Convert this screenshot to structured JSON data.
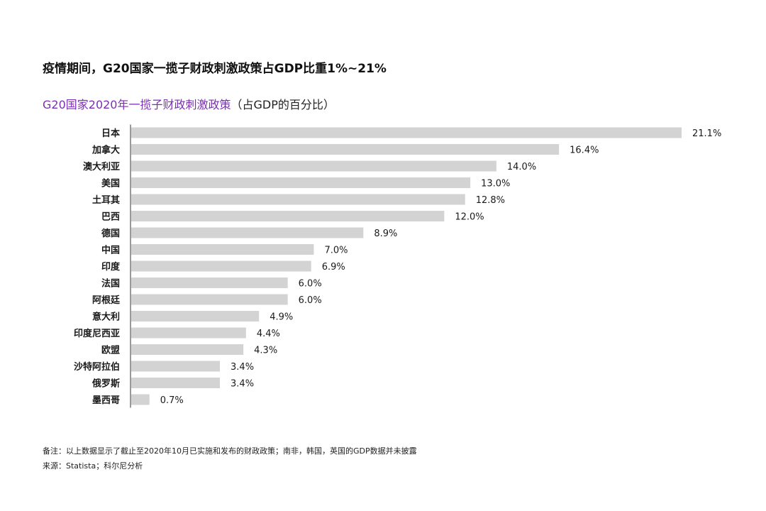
{
  "headline": "疫情期间，G20国家一揽子财政刺激政策占GDP比重1%~21%",
  "subtitle": {
    "accent": "G20国家2020年一揽子财政刺激政策",
    "rest": "（占GDP的百分比）"
  },
  "chart_data": {
    "type": "bar",
    "orientation": "horizontal",
    "categories": [
      "日本",
      "加拿大",
      "澳大利亚",
      "美国",
      "土耳其",
      "巴西",
      "德国",
      "中国",
      "印度",
      "法国",
      "阿根廷",
      "意大利",
      "印度尼西亚",
      "欧盟",
      "沙特阿拉伯",
      "俄罗斯",
      "墨西哥"
    ],
    "values": [
      21.1,
      16.4,
      14.0,
      13.0,
      12.8,
      12.0,
      8.9,
      7.0,
      6.9,
      6.0,
      6.0,
      4.9,
      4.4,
      4.3,
      3.4,
      3.4,
      0.7
    ],
    "value_labels": [
      "21.1%",
      "16.4%",
      "14.0%",
      "13.0%",
      "12.8%",
      "12.0%",
      "8.9%",
      "7.0%",
      "6.9%",
      "6.0%",
      "6.0%",
      "4.9%",
      "4.4%",
      "4.3%",
      "3.4%",
      "3.4%",
      "0.7%"
    ],
    "xlim": [
      0,
      21.1
    ],
    "grid": false,
    "bar_color": "#d3d3d3",
    "axis_color": "#333333"
  },
  "footnote": "备注：以上数据显示了截止至2020年10月已实施和发布的财政政策；南非，韩国，英国的GDP数据并未披露",
  "source": "来源：Statista；科尔尼分析"
}
